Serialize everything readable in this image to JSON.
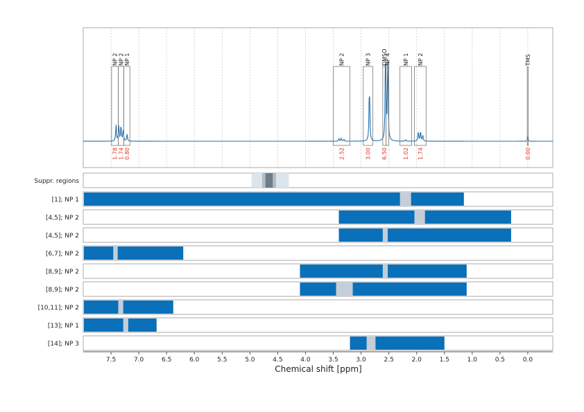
{
  "chart_data": {
    "type": "line",
    "xlabel": "Chemical shift [ppm]",
    "xlim": [
      8.0,
      -0.45
    ],
    "x_ticks": [
      "7.5",
      "7.0",
      "6.5",
      "6.0",
      "5.5",
      "5.0",
      "4.5",
      "4.0",
      "3.5",
      "3.0",
      "2.5",
      "2.0",
      "1.5",
      "1.0",
      "0.5",
      "0.0"
    ],
    "x_tick_values": [
      7.5,
      7.0,
      6.5,
      6.0,
      5.5,
      5.0,
      4.5,
      4.0,
      3.5,
      3.0,
      2.5,
      2.0,
      1.5,
      1.0,
      0.5,
      0.0
    ],
    "grid": true,
    "spectrum": {
      "baseline": 0.0,
      "peaks": [
        {
          "x": 7.41,
          "h": 0.14
        },
        {
          "x": 7.36,
          "h": 0.13
        },
        {
          "x": 7.32,
          "h": 0.14
        },
        {
          "x": 7.28,
          "h": 0.1
        },
        {
          "x": 7.21,
          "h": 0.06
        },
        {
          "x": 3.4,
          "h": 0.02
        },
        {
          "x": 3.36,
          "h": 0.025
        },
        {
          "x": 3.31,
          "h": 0.02
        },
        {
          "x": 2.85,
          "h": 0.5
        },
        {
          "x": 2.56,
          "h": 0.78
        },
        {
          "x": 2.52,
          "h": 0.75
        },
        {
          "x": 2.2,
          "h": 0.012
        },
        {
          "x": 1.97,
          "h": 0.08
        },
        {
          "x": 1.93,
          "h": 0.09
        },
        {
          "x": 1.89,
          "h": 0.05
        },
        {
          "x": 0.0,
          "h": 0.03
        }
      ]
    },
    "annotations": [
      {
        "label": "NP 2",
        "xl": 7.49,
        "xr": 7.37,
        "integral": "1.78"
      },
      {
        "label": "NP 2",
        "xl": 7.37,
        "xr": 7.27,
        "integral": "1.74"
      },
      {
        "label": "NP 1",
        "xl": 7.27,
        "xr": 7.16,
        "integral": "0.80"
      },
      {
        "label": "NP 2",
        "xl": 3.5,
        "xr": 3.2,
        "integral": "2.52"
      },
      {
        "label": "NP 3",
        "xl": 2.96,
        "xr": 2.79,
        "integral": "3.00"
      },
      {
        "label": "DMSO",
        "xl": 2.61,
        "xr": 2.55,
        "integral": "6.50"
      },
      {
        "label": "NP 4",
        "xl": 2.55,
        "xr": 2.5,
        "integral": ""
      },
      {
        "label": "NP 1",
        "xl": 2.3,
        "xr": 2.09,
        "integral": "1.02"
      },
      {
        "label": "NP 2",
        "xl": 2.04,
        "xr": 1.83,
        "integral": "1.74"
      },
      {
        "label": "TMS",
        "xl": 0.01,
        "xr": -0.01,
        "integral": "0.00"
      }
    ],
    "suppression_row": {
      "label": "Suppr. regions",
      "regions": [
        {
          "xl": 4.97,
          "xr": 4.3,
          "shade": "light"
        },
        {
          "xl": 4.78,
          "xr": 4.53,
          "shade": "mid"
        },
        {
          "xl": 4.72,
          "xr": 4.59,
          "shade": "dark"
        }
      ]
    },
    "range_rows": [
      {
        "label": "[1]; NP 1",
        "xl": 8.0,
        "xr": 1.15,
        "gaps": [
          [
            2.3,
            2.1
          ]
        ]
      },
      {
        "label": "[4,5]; NP 2",
        "xl": 3.4,
        "xr": 0.3,
        "gaps": [
          [
            2.04,
            1.85
          ]
        ]
      },
      {
        "label": "[4,5]; NP 2",
        "xl": 3.4,
        "xr": 0.3,
        "gaps": [
          [
            2.61,
            2.52
          ]
        ]
      },
      {
        "label": "[6,7]; NP 2",
        "xl": 8.0,
        "xr": 6.2,
        "gaps": [
          [
            7.46,
            7.38
          ]
        ]
      },
      {
        "label": "[8,9]; NP 2",
        "xl": 4.1,
        "xr": 1.1,
        "gaps": [
          [
            2.61,
            2.52
          ]
        ]
      },
      {
        "label": "[8,9]; NP 2",
        "xl": 4.1,
        "xr": 1.1,
        "gaps": [
          [
            3.45,
            3.15
          ]
        ]
      },
      {
        "label": "[10,11]; NP 2",
        "xl": 8.0,
        "xr": 6.38,
        "gaps": [
          [
            7.37,
            7.28
          ]
        ]
      },
      {
        "label": "[13]; NP 1",
        "xl": 8.0,
        "xr": 6.68,
        "gaps": [
          [
            7.28,
            7.19
          ]
        ]
      },
      {
        "label": "[14]; NP 3",
        "xl": 3.2,
        "xr": 1.5,
        "gaps": [
          [
            2.9,
            2.74
          ]
        ]
      }
    ],
    "colors": {
      "spectrum": "#1f6fb0",
      "bar": "#0970b9",
      "gap": "#c3ced9",
      "supp_light": "#dce4ec",
      "supp_mid": "#b0bdc9",
      "supp_dark": "#6e7d88",
      "integral": "#e03020",
      "grid": "#cccccc",
      "frame": "#aaaaaa"
    }
  }
}
